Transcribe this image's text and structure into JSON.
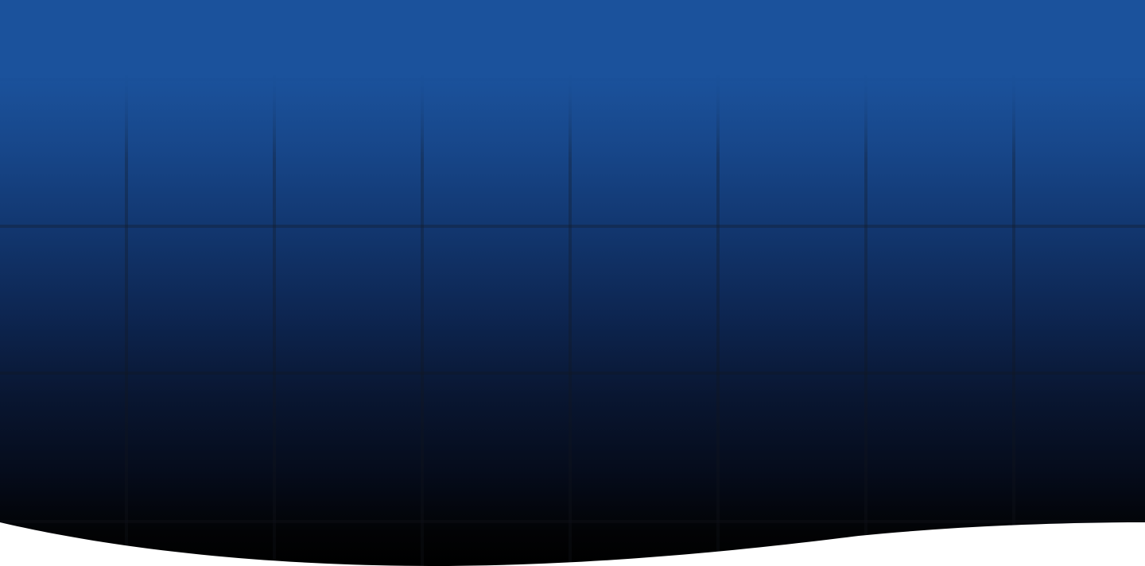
{
  "hero": {
    "gradient_top_color": "#1b529c",
    "gradient_bottom_color": "#000000",
    "grid_line_color": "#14161e",
    "wave_fill_color": "#ffffff"
  }
}
